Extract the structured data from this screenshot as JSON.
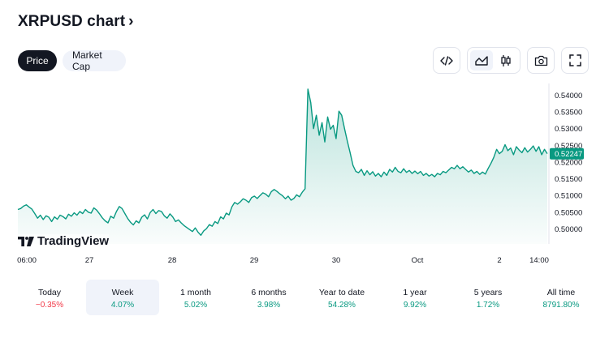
{
  "header": {
    "title": "XRPUSD chart",
    "chevron": "›"
  },
  "tabs": [
    {
      "label": "Price",
      "active": true
    },
    {
      "label": "Market Cap",
      "active": false
    }
  ],
  "toolbar": {
    "icons": [
      "embed-code-icon",
      "area-chart-icon",
      "candles-icon",
      "camera-icon",
      "fullscreen-icon"
    ]
  },
  "chart_data": {
    "type": "area",
    "series": [
      {
        "values": [
          0.5058,
          0.5061,
          0.5068,
          0.5072,
          0.5065,
          0.5059,
          0.5046,
          0.5032,
          0.5041,
          0.5028,
          0.5039,
          0.5035,
          0.5022,
          0.5036,
          0.5029,
          0.5041,
          0.5037,
          0.503,
          0.5044,
          0.5038,
          0.5048,
          0.5041,
          0.5052,
          0.5046,
          0.5058,
          0.505,
          0.5047,
          0.5063,
          0.5056,
          0.5045,
          0.5033,
          0.5024,
          0.5018,
          0.5038,
          0.5032,
          0.5052,
          0.5067,
          0.5061,
          0.5046,
          0.5031,
          0.502,
          0.5012,
          0.5024,
          0.5018,
          0.5035,
          0.5042,
          0.503,
          0.5049,
          0.5058,
          0.5046,
          0.5055,
          0.5052,
          0.5039,
          0.5032,
          0.5045,
          0.5036,
          0.5022,
          0.5027,
          0.5018,
          0.501,
          0.5004,
          0.4998,
          0.4992,
          0.5003,
          0.499,
          0.4981,
          0.4994,
          0.5001,
          0.5013,
          0.5008,
          0.5022,
          0.5016,
          0.5036,
          0.503,
          0.5047,
          0.5042,
          0.5066,
          0.5079,
          0.5074,
          0.5081,
          0.509,
          0.5086,
          0.5079,
          0.5094,
          0.5098,
          0.5091,
          0.51,
          0.5108,
          0.5104,
          0.5096,
          0.5111,
          0.5118,
          0.5112,
          0.5105,
          0.5099,
          0.509,
          0.5098,
          0.5086,
          0.5091,
          0.5102,
          0.5096,
          0.511,
          0.512,
          0.5418,
          0.5378,
          0.53,
          0.534,
          0.528,
          0.5318,
          0.526,
          0.5335,
          0.5298,
          0.531,
          0.527,
          0.5352,
          0.534,
          0.53,
          0.5262,
          0.5228,
          0.519,
          0.5172,
          0.5168,
          0.5178,
          0.516,
          0.5174,
          0.5162,
          0.5171,
          0.5158,
          0.5166,
          0.5156,
          0.517,
          0.516,
          0.5178,
          0.517,
          0.5184,
          0.5172,
          0.5168,
          0.518,
          0.5169,
          0.5175,
          0.5166,
          0.5173,
          0.5165,
          0.5172,
          0.516,
          0.5166,
          0.5158,
          0.5163,
          0.5156,
          0.5166,
          0.5162,
          0.5172,
          0.5168,
          0.5176,
          0.5184,
          0.518,
          0.519,
          0.518,
          0.5186,
          0.5178,
          0.517,
          0.5176,
          0.5166,
          0.5172,
          0.5163,
          0.517,
          0.5164,
          0.5181,
          0.5196,
          0.5214,
          0.5238,
          0.5225,
          0.5232,
          0.5252,
          0.5234,
          0.5242,
          0.5222,
          0.5246,
          0.5236,
          0.5228,
          0.5243,
          0.523,
          0.5238,
          0.5248,
          0.5232,
          0.5246,
          0.5222,
          0.5238,
          0.5225
        ]
      }
    ],
    "x_tick_labels": [
      "06:00",
      "27",
      "28",
      "29",
      "30",
      "Oct",
      "2",
      "14:00"
    ],
    "y_tick_labels": [
      "0.54000",
      "0.53500",
      "0.53000",
      "0.52500",
      "0.52000",
      "0.51500",
      "0.51000",
      "0.50500",
      "0.50000"
    ],
    "ylim": [
      0.4955,
      0.5435
    ],
    "last_value_label": "0.52247",
    "last_value": 0.52247,
    "grid": false,
    "colors": {
      "line": "#089981",
      "fill": "#089981",
      "badge": "#089981"
    }
  },
  "logo": {
    "text": "TradingView",
    "icon": "tradingview-logo-icon"
  },
  "periods": [
    {
      "label": "Today",
      "value": "−0.35%",
      "sign": "neg",
      "selected": false
    },
    {
      "label": "Week",
      "value": "4.07%",
      "sign": "pos",
      "selected": true
    },
    {
      "label": "1 month",
      "value": "5.02%",
      "sign": "pos",
      "selected": false
    },
    {
      "label": "6 months",
      "value": "3.98%",
      "sign": "pos",
      "selected": false
    },
    {
      "label": "Year to date",
      "value": "54.28%",
      "sign": "pos",
      "selected": false
    },
    {
      "label": "1 year",
      "value": "9.92%",
      "sign": "pos",
      "selected": false
    },
    {
      "label": "5 years",
      "value": "1.72%",
      "sign": "pos",
      "selected": false
    },
    {
      "label": "All time",
      "value": "8791.80%",
      "sign": "pos",
      "selected": false
    }
  ]
}
